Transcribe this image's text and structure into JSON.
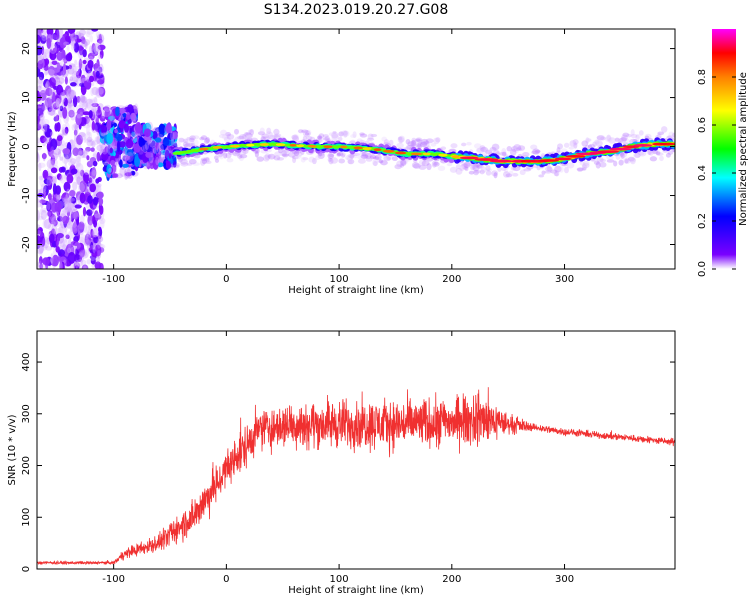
{
  "figure_title": "S134.2023.019.20.27.G08",
  "chart_data": [
    {
      "type": "heatmap",
      "name": "spectrogram",
      "xlabel": "Height of straight line (km)",
      "ylabel": "Frequency (Hz)",
      "xlim": [
        -168,
        398
      ],
      "ylim": [
        -25,
        24
      ],
      "x_ticks": [
        -100,
        0,
        100,
        200,
        300
      ],
      "y_ticks": [
        20,
        10,
        0,
        -10,
        -20
      ],
      "colorbar": {
        "label": "Normalized spectral amplitude",
        "range": [
          0,
          1
        ],
        "ticks": [
          "0.0",
          "0.2",
          "0.4",
          "0.6",
          "0.8"
        ],
        "colors": [
          "#ffffff",
          "#7a00ff",
          "#0000ff",
          "#00ffff",
          "#00ff00",
          "#ffff00",
          "#ff8000",
          "#ff0000",
          "#ff00ff"
        ]
      },
      "ridge": {
        "x": [
          -45,
          -20,
          0,
          40,
          80,
          100,
          130,
          160,
          185,
          200,
          225,
          245,
          260,
          280,
          300,
          320,
          340,
          360,
          380,
          398
        ],
        "y": [
          -1.5,
          -0.5,
          0,
          0.5,
          0,
          0,
          -0.5,
          -1.5,
          -1.5,
          -2,
          -2.5,
          -3,
          -3,
          -3,
          -2.5,
          -1.5,
          -1,
          0,
          0.5,
          0.5
        ]
      },
      "noise_regions": [
        {
          "x": [
            -168,
            -110
          ],
          "y": [
            -25,
            24
          ]
        },
        {
          "x": [
            -110,
            -80
          ],
          "y": [
            -6,
            8
          ]
        },
        {
          "x": [
            -80,
            -45
          ],
          "y": [
            -4,
            4
          ]
        }
      ]
    },
    {
      "type": "line",
      "name": "snr",
      "xlabel": "Height of straight line (km)",
      "ylabel": "SNR (10 * v/v)",
      "xlim": [
        -168,
        398
      ],
      "ylim": [
        0,
        460
      ],
      "x_ticks": [
        -100,
        0,
        100,
        200,
        300
      ],
      "y_ticks": [
        0,
        100,
        200,
        300,
        400
      ],
      "line_color": "#f03030",
      "envelope": {
        "x": [
          -168,
          -100,
          -90,
          -60,
          -30,
          -10,
          10,
          30,
          60,
          100,
          150,
          200,
          230,
          250,
          270,
          300,
          350,
          398
        ],
        "mean": [
          12,
          12,
          30,
          50,
          100,
          160,
          220,
          270,
          280,
          280,
          280,
          285,
          290,
          280,
          275,
          265,
          255,
          245
        ],
        "amplitude": [
          4,
          4,
          15,
          25,
          50,
          60,
          60,
          60,
          65,
          70,
          70,
          70,
          70,
          30,
          12,
          10,
          10,
          10
        ]
      }
    }
  ]
}
